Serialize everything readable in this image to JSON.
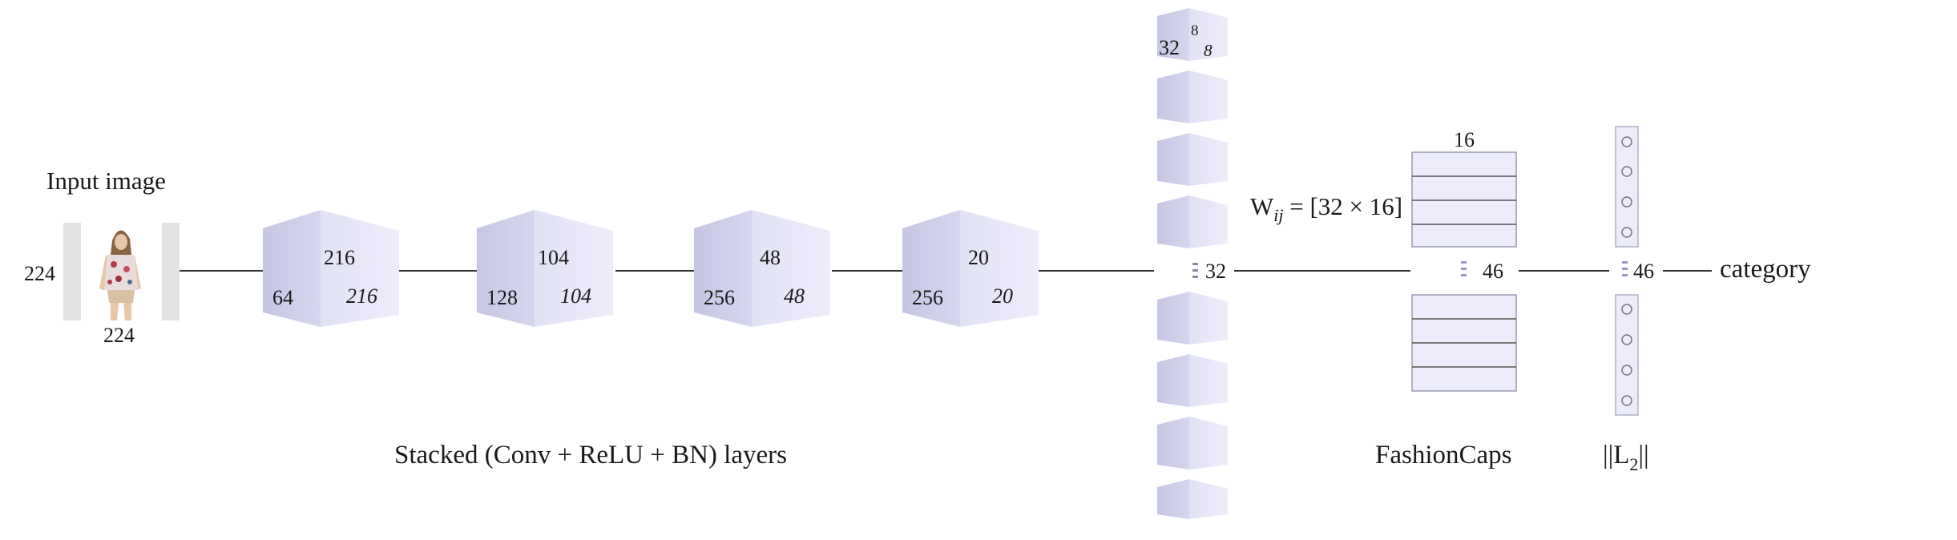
{
  "input": {
    "title": "Input image",
    "height_label": "224",
    "width_label": "224",
    "photo_icon": "fashion-photo-woman-floral-top"
  },
  "conv_blocks": [
    {
      "channels": "64",
      "height": "216",
      "width": "216"
    },
    {
      "channels": "128",
      "height": "104",
      "width": "104"
    },
    {
      "channels": "256",
      "height": "48",
      "width": "48"
    },
    {
      "channels": "256",
      "height": "20",
      "width": "20"
    }
  ],
  "conv_caption": "Stacked (Conv + ReLU + BN) layers",
  "primary_caps": {
    "top_channels": "32",
    "top_h": "8",
    "top_w": "8",
    "count": "32"
  },
  "weight_label": {
    "prefix": "W",
    "subscript": "ij",
    "rest": " = [32 × 16]"
  },
  "fashion_caps": {
    "dim": "16",
    "count": "46",
    "caption": "FashionCaps"
  },
  "l2": {
    "count": "46",
    "caption_left": "||L",
    "caption_sub": "2",
    "caption_right": "||"
  },
  "output": {
    "label": "category"
  },
  "colors": {
    "cube_front": "#d2d2ec",
    "cube_side": "#e6e6f7",
    "cube_top": "#c9c9e6",
    "caps_fill": "#ececfa",
    "line": "#333333"
  }
}
